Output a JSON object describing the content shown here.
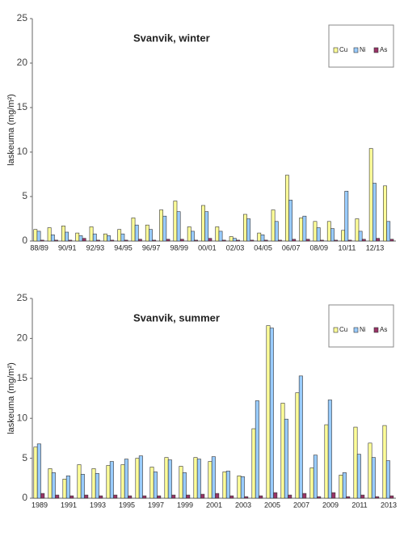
{
  "chart_data": [
    {
      "type": "bar",
      "title": "Svanvik, winter",
      "y_label": "laskeuma (mg/m²)",
      "categories": [
        "88/89",
        null,
        "90/91",
        null,
        "92/93",
        null,
        "94/95",
        null,
        "96/97",
        null,
        "98/99",
        null,
        "00/01",
        null,
        "02/03",
        null,
        "04/05",
        null,
        "06/07",
        null,
        "08/09",
        null,
        "10/11",
        null,
        "12/13",
        null
      ],
      "series": [
        {
          "name": "Cu",
          "color": "#ffff99",
          "values": [
            1.3,
            1.5,
            1.7,
            0.9,
            1.6,
            0.8,
            1.3,
            2.6,
            1.8,
            3.5,
            4.5,
            1.6,
            4.0,
            1.6,
            0.5,
            3.0,
            0.9,
            3.5,
            7.4,
            2.6,
            2.2,
            2.2,
            1.2,
            2.5,
            10.4,
            6.2
          ]
        },
        {
          "name": "Ni",
          "color": "#99ccff",
          "values": [
            1.1,
            0.7,
            1.0,
            0.6,
            0.8,
            0.6,
            0.8,
            1.8,
            1.3,
            2.8,
            3.3,
            1.1,
            3.3,
            1.1,
            0.3,
            2.5,
            0.7,
            2.2,
            4.6,
            2.8,
            1.5,
            1.4,
            5.6,
            1.1,
            6.5,
            2.2
          ]
        },
        {
          "name": "As",
          "color": "#993366",
          "values": [
            0.1,
            0.1,
            0.1,
            0.3,
            0.1,
            0.1,
            0.1,
            0.2,
            0.1,
            0.2,
            0.2,
            0.1,
            0.3,
            0.1,
            0.1,
            0.1,
            0.1,
            0.1,
            0.2,
            0.2,
            0.1,
            0.1,
            0.1,
            0.2,
            0.3,
            0.2
          ]
        }
      ],
      "ylim": [
        0,
        25
      ],
      "yticks": [
        0,
        5,
        10,
        15,
        20,
        25
      ],
      "legend": "upper right"
    },
    {
      "type": "bar",
      "title": "Svanvik, summer",
      "y_label": "laskeuma (mg/m²)",
      "categories": [
        "1989",
        null,
        "1991",
        null,
        "1993",
        null,
        "1995",
        null,
        "1997",
        null,
        "1999",
        null,
        "2001",
        null,
        "2003",
        null,
        "2005",
        null,
        "2007",
        null,
        "2009",
        null,
        "2011",
        null,
        "2013"
      ],
      "series": [
        {
          "name": "Cu",
          "color": "#ffff99",
          "values": [
            6.4,
            3.7,
            2.4,
            4.2,
            3.7,
            4.1,
            4.2,
            5.0,
            3.9,
            5.1,
            4.0,
            5.1,
            4.6,
            3.3,
            2.8,
            8.7,
            21.6,
            11.9,
            13.2,
            3.8,
            9.2,
            2.9,
            8.9,
            6.9,
            9.1
          ]
        },
        {
          "name": "Ni",
          "color": "#99ccff",
          "values": [
            6.8,
            3.2,
            2.8,
            3.0,
            3.1,
            4.6,
            4.9,
            5.3,
            3.3,
            4.8,
            3.2,
            4.9,
            5.2,
            3.4,
            2.7,
            12.2,
            21.3,
            9.9,
            15.3,
            5.4,
            12.3,
            3.2,
            5.5,
            5.1,
            4.7
          ]
        },
        {
          "name": "As",
          "color": "#993366",
          "values": [
            0.6,
            0.4,
            0.3,
            0.4,
            0.3,
            0.4,
            0.3,
            0.3,
            0.3,
            0.4,
            0.4,
            0.5,
            0.6,
            0.3,
            0.2,
            0.3,
            0.7,
            0.4,
            0.6,
            0.2,
            0.7,
            0.2,
            0.4,
            0.2,
            0.3
          ]
        }
      ],
      "ylim": [
        0,
        25
      ],
      "yticks": [
        0,
        5,
        10,
        15,
        20,
        25
      ],
      "legend": "upper right"
    }
  ]
}
